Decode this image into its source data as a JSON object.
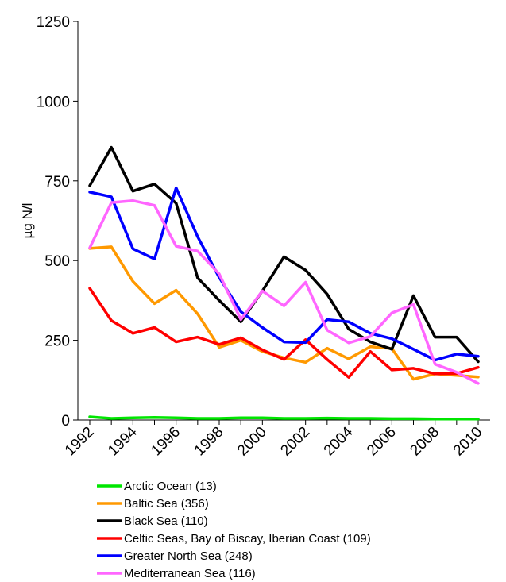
{
  "chart_data": {
    "type": "line",
    "title": "",
    "xlabel": "",
    "ylabel": "µg N/l",
    "xlim": [
      1992,
      2010
    ],
    "ylim": [
      0,
      1250
    ],
    "yticks": [
      0,
      250,
      500,
      750,
      1000,
      1250
    ],
    "xticks": [
      1992,
      1994,
      1996,
      1998,
      2000,
      2002,
      2004,
      2006,
      2008,
      2010
    ],
    "grid": false,
    "legend_position": "bottom",
    "x": [
      1992,
      1993,
      1994,
      1995,
      1996,
      1997,
      1998,
      1999,
      2000,
      2001,
      2002,
      2003,
      2004,
      2005,
      2006,
      2007,
      2008,
      2009,
      2010
    ],
    "series": [
      {
        "name": "Arctic Ocean (13)",
        "color": "#00e600",
        "values": [
          10,
          5,
          7,
          8,
          7,
          5,
          5,
          7,
          7,
          5,
          5,
          6,
          5,
          5,
          4,
          4,
          3,
          3,
          3
        ]
      },
      {
        "name": "Baltic Sea (356)",
        "color": "#ff9900",
        "values": [
          538,
          543,
          435,
          365,
          407,
          333,
          228,
          250,
          215,
          195,
          181,
          225,
          192,
          230,
          224,
          128,
          145,
          140,
          135
        ]
      },
      {
        "name": "Black Sea (110)",
        "color": "#000000",
        "values": [
          735,
          855,
          718,
          740,
          680,
          446,
          375,
          308,
          405,
          512,
          470,
          395,
          285,
          245,
          222,
          390,
          260,
          260,
          183
        ]
      },
      {
        "name": "Celtic Seas, Bay of Biscay, Iberian Coast (109)",
        "color": "#ff0000",
        "values": [
          413,
          312,
          272,
          290,
          245,
          260,
          237,
          258,
          220,
          190,
          252,
          190,
          134,
          215,
          157,
          162,
          145,
          146,
          165
        ]
      },
      {
        "name": "Greater North Sea (248)",
        "color": "#0000ff",
        "values": [
          715,
          700,
          537,
          505,
          728,
          575,
          447,
          340,
          290,
          245,
          243,
          315,
          308,
          272,
          255,
          222,
          188,
          207,
          200
        ]
      },
      {
        "name": "Mediterranean Sea (116)",
        "color": "#ff66ff",
        "values": [
          540,
          682,
          688,
          673,
          545,
          530,
          458,
          315,
          405,
          358,
          432,
          282,
          242,
          262,
          336,
          362,
          175,
          150,
          115
        ]
      }
    ]
  }
}
